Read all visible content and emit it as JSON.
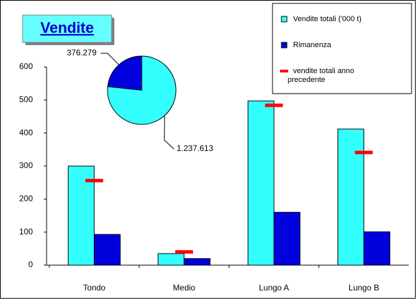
{
  "chart_data": [
    {
      "type": "bar",
      "title": "Vendite",
      "categories": [
        "Tondo",
        "Medio",
        "Lungo A",
        "Lungo B"
      ],
      "series": [
        {
          "name": "Vendite totali ('000 t)",
          "color": "#33ffff",
          "style": "bar",
          "values": [
            300,
            35,
            497,
            412
          ]
        },
        {
          "name": "Rimanenza",
          "color": "#0000dd",
          "style": "bar",
          "values": [
            93,
            20,
            160,
            101
          ]
        },
        {
          "name": "vendite totali anno precedente",
          "color": "#ff0000",
          "style": "dash",
          "values": [
            256,
            40,
            484,
            341
          ]
        }
      ],
      "ylim": [
        0,
        600
      ],
      "yticks": [
        0,
        100,
        200,
        300,
        400,
        500,
        600
      ],
      "grid": false,
      "legend": "top-right"
    },
    {
      "type": "pie",
      "values": [
        376279,
        1237613
      ],
      "value_labels": [
        "376.279",
        "1.237.613"
      ],
      "colors": [
        "#0000dd",
        "#33ffff"
      ]
    }
  ]
}
